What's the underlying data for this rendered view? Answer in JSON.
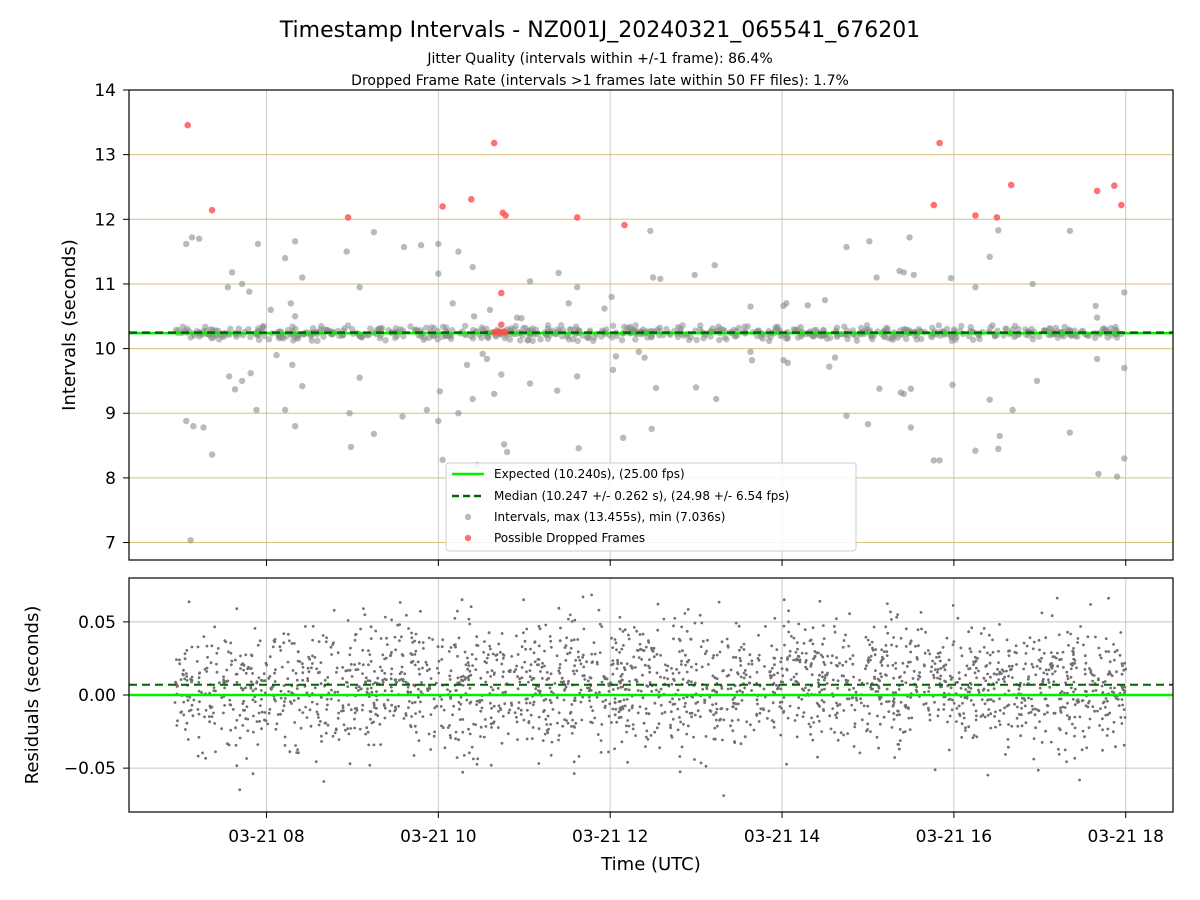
{
  "chart_data": [
    {
      "type": "scatter",
      "title": "Timestamp Intervals - NZ001J_20240321_065541_676201",
      "subtitle_1": "Jitter Quality (intervals within +/-1 frame): 86.4%",
      "subtitle_2": "Dropped Frame Rate (intervals >1 frames late within 50 FF files): 1.7%",
      "ylabel": "Intervals (seconds)",
      "x_range": [
        "2024-03-21T06:24",
        "2024-03-21T18:33"
      ],
      "ylim": [
        6.73,
        14.0
      ],
      "y_ticks": [
        "7",
        "8",
        "9",
        "10",
        "11",
        "12",
        "13",
        "14"
      ],
      "y_tick_values": [
        7,
        8,
        9,
        10,
        11,
        12,
        13,
        14
      ],
      "grid": "on (horizontal goldenrod lines, vertical grey lines)",
      "legend_position": "lower center",
      "legend": [
        "Expected (10.240s), (25.00 fps)",
        "Median (10.247 +/- 0.262 s), (24.98 +/- 6.54 fps)",
        "Intervals, max (13.455s), min (7.036s)",
        "Possible Dropped Frames"
      ],
      "series": [
        {
          "name": "Expected (10.240s), (25.00 fps)",
          "style": "solid line",
          "color": "#00ee00",
          "y": 10.24
        },
        {
          "name": "Median (10.247 +/- 0.262 s), (24.98 +/- 6.54 fps)",
          "style": "dashed line",
          "color": "#006400",
          "y": 10.247
        },
        {
          "name": "Intervals, max (13.455s), min (7.036s)",
          "color": "#8c8c8c",
          "band": {
            "x_start": "2024-03-21T06:56",
            "x_end": "2024-03-21T18:00",
            "center": 10.24,
            "spread": 0.12,
            "count": 700
          },
          "points": [
            [
              "2024-03-21T07:04",
              11.62
            ],
            [
              "2024-03-21T07:08",
              11.72
            ],
            [
              "2024-03-21T07:13",
              11.7
            ],
            [
              "2024-03-21T07:04",
              8.88
            ],
            [
              "2024-03-21T07:09",
              8.8
            ],
            [
              "2024-03-21T07:16",
              8.78
            ],
            [
              "2024-03-21T07:22",
              8.36
            ],
            [
              "2024-03-21T07:07",
              7.036
            ],
            [
              "2024-03-21T07:36",
              11.18
            ],
            [
              "2024-03-21T07:33",
              10.95
            ],
            [
              "2024-03-21T07:43",
              11.0
            ],
            [
              "2024-03-21T07:48",
              10.88
            ],
            [
              "2024-03-21T07:54",
              11.62
            ],
            [
              "2024-03-21T07:34",
              9.57
            ],
            [
              "2024-03-21T07:38",
              9.37
            ],
            [
              "2024-03-21T07:43",
              9.5
            ],
            [
              "2024-03-21T07:49",
              9.62
            ],
            [
              "2024-03-21T07:53",
              9.05
            ],
            [
              "2024-03-21T08:03",
              10.6
            ],
            [
              "2024-03-21T08:07",
              9.9
            ],
            [
              "2024-03-21T08:13",
              11.4
            ],
            [
              "2024-03-21T08:20",
              11.66
            ],
            [
              "2024-03-21T08:25",
              11.1
            ],
            [
              "2024-03-21T08:17",
              10.7
            ],
            [
              "2024-03-21T08:20",
              10.5
            ],
            [
              "2024-03-21T08:13",
              9.05
            ],
            [
              "2024-03-21T08:18",
              9.75
            ],
            [
              "2024-03-21T08:20",
              8.8
            ],
            [
              "2024-03-21T08:25",
              9.42
            ],
            [
              "2024-03-21T08:56",
              11.5
            ],
            [
              "2024-03-21T08:58",
              9.0
            ],
            [
              "2024-03-21T08:59",
              8.48
            ],
            [
              "2024-03-21T09:05",
              10.95
            ],
            [
              "2024-03-21T09:05",
              9.55
            ],
            [
              "2024-03-21T09:15",
              11.8
            ],
            [
              "2024-03-21T09:15",
              8.68
            ],
            [
              "2024-03-21T09:36",
              11.57
            ],
            [
              "2024-03-21T09:35",
              8.95
            ],
            [
              "2024-03-21T09:48",
              11.6
            ],
            [
              "2024-03-21T09:52",
              9.05
            ],
            [
              "2024-03-21T10:00",
              11.62
            ],
            [
              "2024-03-21T10:00",
              11.16
            ],
            [
              "2024-03-21T10:00",
              8.88
            ],
            [
              "2024-03-21T10:01",
              9.34
            ],
            [
              "2024-03-21T10:03",
              8.28
            ],
            [
              "2024-03-21T10:10",
              10.7
            ],
            [
              "2024-03-21T10:14",
              11.5
            ],
            [
              "2024-03-21T10:14",
              9.0
            ],
            [
              "2024-03-21T10:20",
              9.75
            ],
            [
              "2024-03-21T10:24",
              11.26
            ],
            [
              "2024-03-21T10:24",
              9.22
            ],
            [
              "2024-03-21T10:25",
              10.5
            ],
            [
              "2024-03-21T10:27",
              8.2
            ],
            [
              "2024-03-21T10:31",
              9.92
            ],
            [
              "2024-03-21T10:34",
              9.84
            ],
            [
              "2024-03-21T10:36",
              10.6
            ],
            [
              "2024-03-21T10:39",
              9.3
            ],
            [
              "2024-03-21T10:44",
              9.6
            ],
            [
              "2024-03-21T10:46",
              8.52
            ],
            [
              "2024-03-21T10:48",
              8.4
            ],
            [
              "2024-03-21T10:55",
              10.48
            ],
            [
              "2024-03-21T10:58",
              10.47
            ],
            [
              "2024-03-21T11:04",
              11.04
            ],
            [
              "2024-03-21T11:04",
              9.46
            ],
            [
              "2024-03-21T11:24",
              11.17
            ],
            [
              "2024-03-21T11:23",
              9.35
            ],
            [
              "2024-03-21T11:31",
              10.7
            ],
            [
              "2024-03-21T11:37",
              10.95
            ],
            [
              "2024-03-21T11:37",
              9.57
            ],
            [
              "2024-03-21T11:38",
              8.46
            ],
            [
              "2024-03-21T11:56",
              10.62
            ],
            [
              "2024-03-21T12:01",
              10.8
            ],
            [
              "2024-03-21T12:02",
              9.67
            ],
            [
              "2024-03-21T12:04",
              9.88
            ],
            [
              "2024-03-21T12:09",
              8.62
            ],
            [
              "2024-03-21T12:20",
              9.95
            ],
            [
              "2024-03-21T12:24",
              9.86
            ],
            [
              "2024-03-21T12:28",
              11.82
            ],
            [
              "2024-03-21T12:29",
              8.76
            ],
            [
              "2024-03-21T12:30",
              11.1
            ],
            [
              "2024-03-21T12:32",
              9.39
            ],
            [
              "2024-03-21T12:35",
              11.08
            ],
            [
              "2024-03-21T12:59",
              11.14
            ],
            [
              "2024-03-21T13:13",
              11.29
            ],
            [
              "2024-03-21T13:00",
              9.4
            ],
            [
              "2024-03-21T13:14",
              9.22
            ],
            [
              "2024-03-21T13:38",
              10.65
            ],
            [
              "2024-03-21T13:38",
              9.95
            ],
            [
              "2024-03-21T13:39",
              9.82
            ],
            [
              "2024-03-21T13:51",
              10.12
            ],
            [
              "2024-03-21T14:01",
              10.66
            ],
            [
              "2024-03-21T14:03",
              10.7
            ],
            [
              "2024-03-21T14:01",
              9.82
            ],
            [
              "2024-03-21T14:04",
              9.78
            ],
            [
              "2024-03-21T14:18",
              10.67
            ],
            [
              "2024-03-21T14:30",
              10.75
            ],
            [
              "2024-03-21T14:33",
              9.72
            ],
            [
              "2024-03-21T14:37",
              9.86
            ],
            [
              "2024-03-21T14:45",
              11.57
            ],
            [
              "2024-03-21T14:45",
              8.96
            ],
            [
              "2024-03-21T15:01",
              11.66
            ],
            [
              "2024-03-21T15:06",
              11.1
            ],
            [
              "2024-03-21T15:08",
              9.38
            ],
            [
              "2024-03-21T15:00",
              8.83
            ],
            [
              "2024-03-21T15:22",
              11.2
            ],
            [
              "2024-03-21T15:25",
              11.18
            ],
            [
              "2024-03-21T15:32",
              11.14
            ],
            [
              "2024-03-21T15:25",
              9.3
            ],
            [
              "2024-03-21T15:23",
              9.32
            ],
            [
              "2024-03-21T15:30",
              9.38
            ],
            [
              "2024-03-21T15:30",
              8.78
            ],
            [
              "2024-03-21T15:29",
              11.72
            ],
            [
              "2024-03-21T15:46",
              8.27
            ],
            [
              "2024-03-21T15:50",
              8.27
            ],
            [
              "2024-03-21T15:58",
              11.09
            ],
            [
              "2024-03-21T15:59",
              9.44
            ],
            [
              "2024-03-21T16:15",
              10.95
            ],
            [
              "2024-03-21T16:15",
              8.42
            ],
            [
              "2024-03-21T16:25",
              11.42
            ],
            [
              "2024-03-21T16:25",
              9.21
            ],
            [
              "2024-03-21T16:31",
              11.83
            ],
            [
              "2024-03-21T16:31",
              8.45
            ],
            [
              "2024-03-21T16:32",
              8.65
            ],
            [
              "2024-03-21T16:41",
              9.05
            ],
            [
              "2024-03-21T16:55",
              11.0
            ],
            [
              "2024-03-21T16:58",
              9.5
            ],
            [
              "2024-03-21T17:21",
              11.82
            ],
            [
              "2024-03-21T17:21",
              8.7
            ],
            [
              "2024-03-21T17:39",
              10.66
            ],
            [
              "2024-03-21T17:40",
              10.48
            ],
            [
              "2024-03-21T17:40",
              9.84
            ],
            [
              "2024-03-21T17:41",
              8.06
            ],
            [
              "2024-03-21T17:54",
              8.02
            ],
            [
              "2024-03-21T17:59",
              8.3
            ],
            [
              "2024-03-21T17:59",
              10.87
            ],
            [
              "2024-03-21T17:59",
              9.7
            ]
          ]
        },
        {
          "name": "Possible Dropped Frames",
          "color": "#ff4d4d",
          "points": [
            [
              "2024-03-21T07:05",
              13.455
            ],
            [
              "2024-03-21T07:22",
              12.14
            ],
            [
              "2024-03-21T08:57",
              12.03
            ],
            [
              "2024-03-21T10:03",
              12.2
            ],
            [
              "2024-03-21T10:23",
              12.31
            ],
            [
              "2024-03-21T10:39",
              13.18
            ],
            [
              "2024-03-21T10:45",
              12.1
            ],
            [
              "2024-03-21T10:47",
              12.06
            ],
            [
              "2024-03-21T10:44",
              10.86
            ],
            [
              "2024-03-21T10:44",
              10.37
            ],
            [
              "2024-03-21T10:39",
              10.25
            ],
            [
              "2024-03-21T10:41",
              10.26
            ],
            [
              "2024-03-21T10:43",
              10.24
            ],
            [
              "2024-03-21T10:45",
              10.26
            ],
            [
              "2024-03-21T10:47",
              10.25
            ],
            [
              "2024-03-21T11:37",
              12.03
            ],
            [
              "2024-03-21T12:10",
              11.91
            ],
            [
              "2024-03-21T15:46",
              12.22
            ],
            [
              "2024-03-21T15:50",
              13.18
            ],
            [
              "2024-03-21T16:15",
              12.06
            ],
            [
              "2024-03-21T16:30",
              12.03
            ],
            [
              "2024-03-21T16:40",
              12.53
            ],
            [
              "2024-03-21T17:40",
              12.44
            ],
            [
              "2024-03-21T17:52",
              12.52
            ],
            [
              "2024-03-21T17:57",
              12.22
            ]
          ]
        }
      ]
    },
    {
      "type": "scatter",
      "ylabel": "Residuals (seconds)",
      "xlabel": "Time (UTC)",
      "x_ticks": [
        "03-21 08",
        "03-21 10",
        "03-21 12",
        "03-21 14",
        "03-21 16",
        "03-21 18"
      ],
      "x_tick_values": [
        "2024-03-21T08:00",
        "2024-03-21T10:00",
        "2024-03-21T12:00",
        "2024-03-21T14:00",
        "2024-03-21T16:00",
        "2024-03-21T18:00"
      ],
      "x_range": [
        "2024-03-21T06:24",
        "2024-03-21T18:33"
      ],
      "ylim": [
        -0.08,
        0.08
      ],
      "y_ticks": [
        "−0.05",
        "0.00",
        "0.05"
      ],
      "y_tick_values": [
        -0.05,
        0.0,
        0.05
      ],
      "grid": "on (grey)",
      "series": [
        {
          "name": "Expected (10.240s), (25.00 fps)",
          "style": "solid line",
          "color": "#00ee00",
          "y": 0.0
        },
        {
          "name": "Median (10.247 +/- 0.262 s), (24.98 +/- 6.54 fps)",
          "style": "dashed line",
          "color": "#006400",
          "y": 0.007
        },
        {
          "name": "residuals",
          "color": "#707070",
          "distribution": {
            "x_start": "2024-03-21T06:56",
            "x_end": "2024-03-21T18:00",
            "count": 2300,
            "center": 0.007,
            "spread": 0.022,
            "min": -0.08,
            "max": 0.08
          }
        }
      ]
    }
  ]
}
